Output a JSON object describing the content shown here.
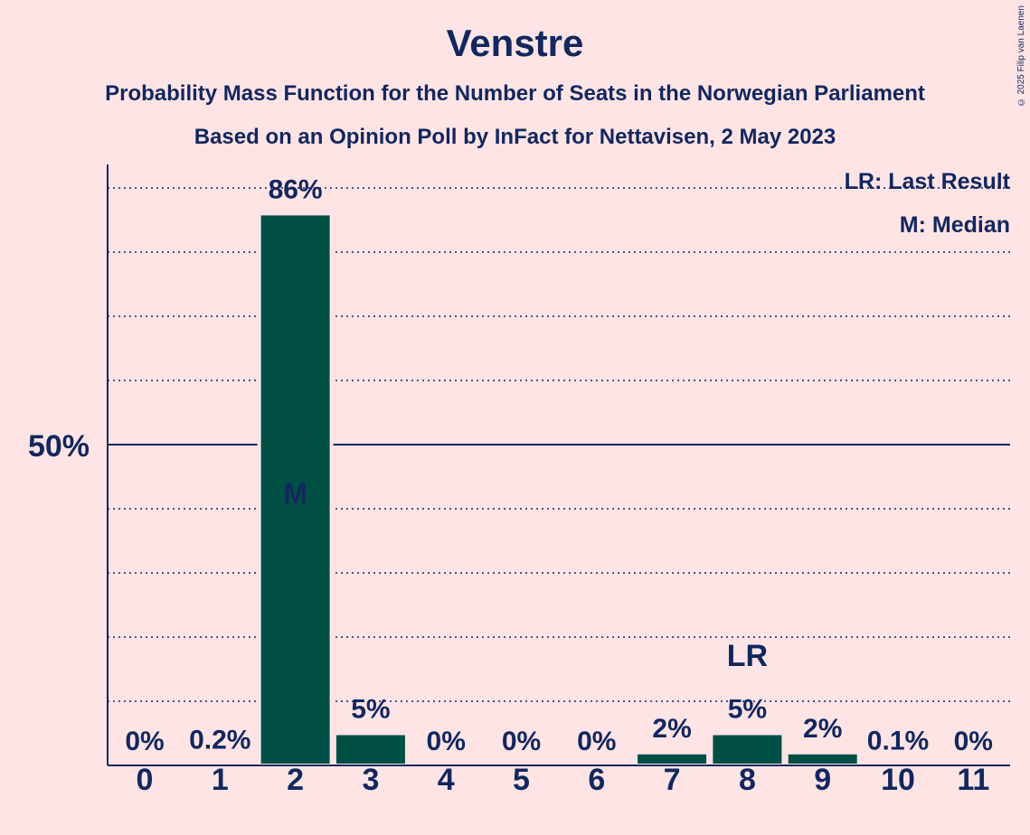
{
  "title": "Venstre",
  "subtitle1": "Probability Mass Function for the Number of Seats in the Norwegian Parliament",
  "subtitle2": "Based on an Opinion Poll by InFact for Nettavisen, 2 May 2023",
  "copyright": "© 2025 Filip van Laenen",
  "legend": {
    "lr": "LR: Last Result",
    "m": "M: Median"
  },
  "chart_data": {
    "type": "bar",
    "categories": [
      "0",
      "1",
      "2",
      "3",
      "4",
      "5",
      "6",
      "7",
      "8",
      "9",
      "10",
      "11"
    ],
    "values": [
      0,
      0.2,
      86,
      5,
      0,
      0,
      0,
      2,
      5,
      2,
      0.1,
      0
    ],
    "value_labels": [
      "0%",
      "0.2%",
      "86%",
      "5%",
      "0%",
      "0%",
      "0%",
      "2%",
      "5%",
      "2%",
      "0.1%",
      "0%"
    ],
    "ylim": [
      0,
      94
    ],
    "y_ticks": [
      {
        "value": 50,
        "label": "50%"
      }
    ],
    "median": {
      "category": "2",
      "label": "M"
    },
    "last_result": {
      "category": "8",
      "label": "LR"
    },
    "bar_color": "#004f44",
    "text_color": "#12275e",
    "background": "#ffe4e6",
    "gridlines": "dotted every 10%, solid at 50%"
  }
}
